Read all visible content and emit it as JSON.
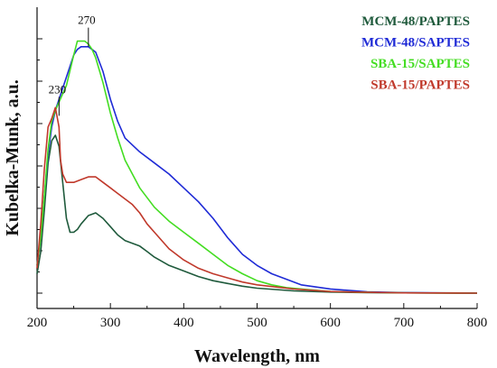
{
  "chart_data": {
    "type": "line",
    "title": "",
    "xlabel": "Wavelength, nm",
    "ylabel": "Kubelka-Munk, a.u.",
    "xlim": [
      200,
      800
    ],
    "ylim": [
      0,
      100
    ],
    "x_ticks": [
      200,
      300,
      400,
      500,
      600,
      700,
      800
    ],
    "y_ticks_shown_as_unlabeled": true,
    "grid": false,
    "legend_position": "top-right",
    "annotations": [
      {
        "text": "270",
        "x": 270,
        "y": 91
      },
      {
        "text": "230",
        "x": 230,
        "y": 66
      }
    ],
    "series": [
      {
        "name": "MCM-48/PAPTES",
        "color": "#1f5a3c",
        "x": [
          200,
          205,
          210,
          215,
          220,
          225,
          230,
          235,
          240,
          245,
          250,
          255,
          260,
          270,
          280,
          290,
          300,
          310,
          320,
          330,
          340,
          350,
          360,
          380,
          400,
          420,
          440,
          460,
          480,
          500,
          550,
          600,
          650,
          700,
          800
        ],
        "y": [
          7,
          15,
          30,
          47,
          55,
          57,
          53,
          40,
          27,
          22,
          22,
          23,
          25,
          28,
          29,
          27,
          24,
          21,
          19,
          18,
          17,
          15,
          13,
          10,
          8,
          6,
          4.5,
          3.5,
          2.5,
          1.8,
          0.8,
          0.4,
          0.2,
          0.1,
          0
        ]
      },
      {
        "name": "MCM-48/SAPTES",
        "color": "#1f2bd6",
        "x": [
          200,
          205,
          210,
          215,
          220,
          225,
          230,
          240,
          250,
          255,
          260,
          265,
          270,
          275,
          280,
          290,
          300,
          310,
          320,
          340,
          360,
          380,
          400,
          420,
          440,
          460,
          480,
          500,
          520,
          540,
          560,
          600,
          650,
          700,
          800
        ],
        "y": [
          10,
          20,
          35,
          50,
          60,
          66,
          70,
          78,
          86,
          88,
          89,
          89,
          89,
          88,
          87,
          80,
          70,
          62,
          56,
          51,
          47,
          43,
          38,
          33,
          27,
          20,
          14,
          10,
          7,
          5,
          3,
          1.5,
          0.5,
          0.2,
          0
        ]
      },
      {
        "name": "SBA-15/SAPTES",
        "color": "#44dd22",
        "x": [
          200,
          205,
          210,
          215,
          220,
          225,
          230,
          240,
          250,
          255,
          260,
          265,
          270,
          275,
          280,
          290,
          300,
          310,
          320,
          340,
          360,
          380,
          400,
          420,
          440,
          460,
          480,
          500,
          520,
          540,
          560,
          600,
          650,
          700,
          800
        ],
        "y": [
          10,
          20,
          35,
          52,
          62,
          66,
          69,
          75,
          86,
          91,
          91,
          91,
          90,
          88,
          85,
          76,
          65,
          56,
          48,
          38,
          31,
          26,
          22,
          18,
          14,
          10,
          7,
          4.5,
          3,
          2,
          1.5,
          0.6,
          0.3,
          0.1,
          0
        ]
      },
      {
        "name": "SBA-15/PAPTES",
        "color": "#c0392b",
        "x": [
          200,
          205,
          210,
          215,
          220,
          225,
          230,
          232,
          235,
          240,
          245,
          250,
          260,
          270,
          280,
          290,
          300,
          310,
          320,
          330,
          340,
          350,
          360,
          380,
          400,
          420,
          440,
          460,
          480,
          500,
          550,
          600,
          650,
          700,
          800
        ],
        "y": [
          9,
          25,
          45,
          60,
          63,
          67,
          60,
          48,
          43,
          40,
          40,
          40,
          41,
          42,
          42,
          40,
          38,
          36,
          34,
          32,
          29,
          25,
          22,
          16,
          12,
          9,
          7,
          5.5,
          4,
          3,
          1.5,
          0.6,
          0.3,
          0.1,
          0
        ]
      }
    ]
  }
}
